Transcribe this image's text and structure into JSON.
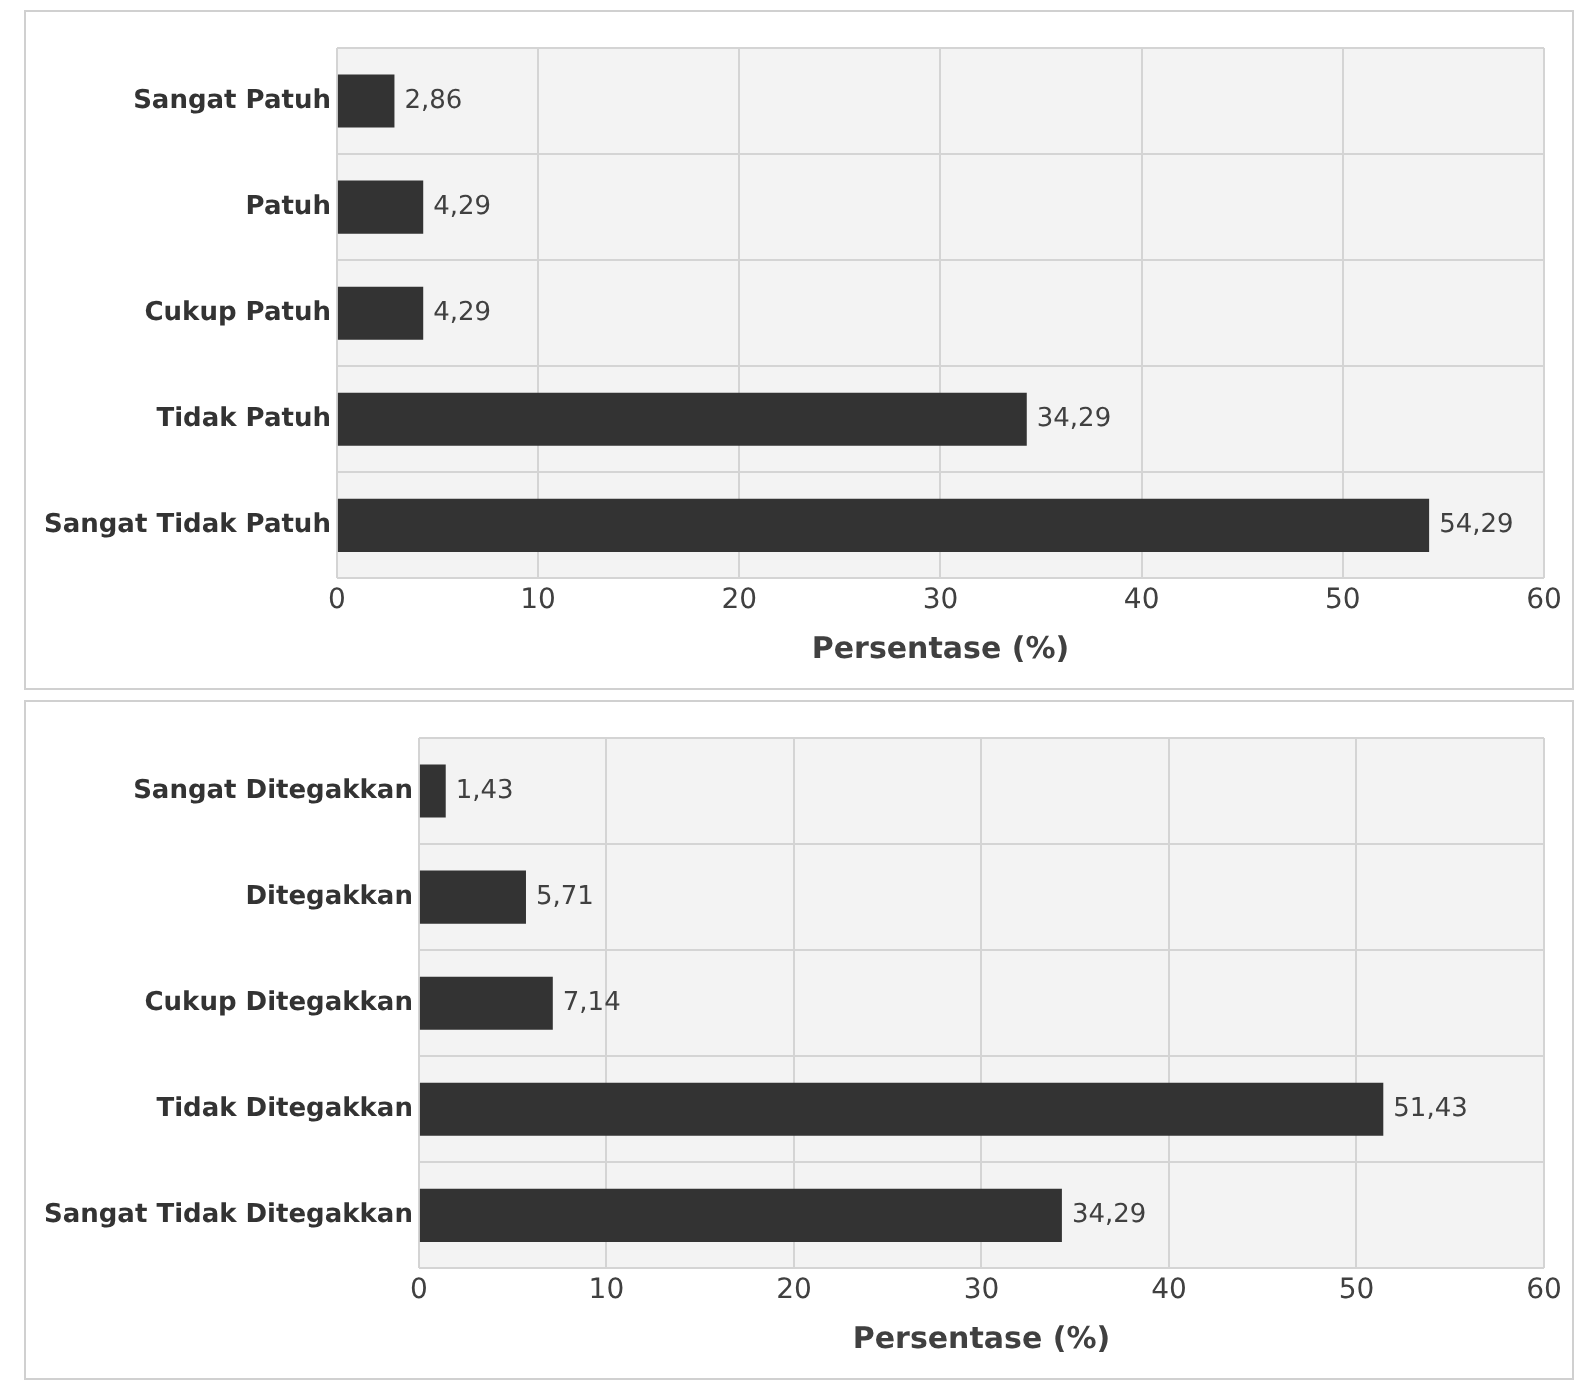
{
  "chart_data": [
    {
      "type": "bar",
      "orientation": "horizontal",
      "categories": [
        "Sangat Patuh",
        "Patuh",
        "Cukup Patuh",
        "Tidak Patuh",
        "Sangat Tidak Patuh"
      ],
      "values": [
        2.86,
        4.29,
        4.29,
        34.29,
        54.29
      ],
      "value_labels": [
        "2,86",
        "4,29",
        "4,29",
        "34,29",
        "54,29"
      ],
      "color": "#333333",
      "xlabel": "Persentase (%)",
      "xlim": [
        0,
        60
      ],
      "xticks": [
        0,
        10,
        20,
        30,
        40,
        50,
        60
      ],
      "grid": true,
      "legend": false
    },
    {
      "type": "bar",
      "orientation": "horizontal",
      "categories": [
        "Sangat Ditegakkan",
        "Ditegakkan",
        "Cukup Ditegakkan",
        "Tidak Ditegakkan",
        "Sangat Tidak Ditegakkan"
      ],
      "values": [
        1.43,
        5.71,
        7.14,
        51.43,
        34.29
      ],
      "value_labels": [
        "1,43",
        "5,71",
        "7,14",
        "51,43",
        "34,29"
      ],
      "color": "#333333",
      "xlabel": "Persentase (%)",
      "xlim": [
        0,
        60
      ],
      "xticks": [
        0,
        10,
        20,
        30,
        40,
        50,
        60
      ],
      "grid": true,
      "legend": false
    }
  ]
}
